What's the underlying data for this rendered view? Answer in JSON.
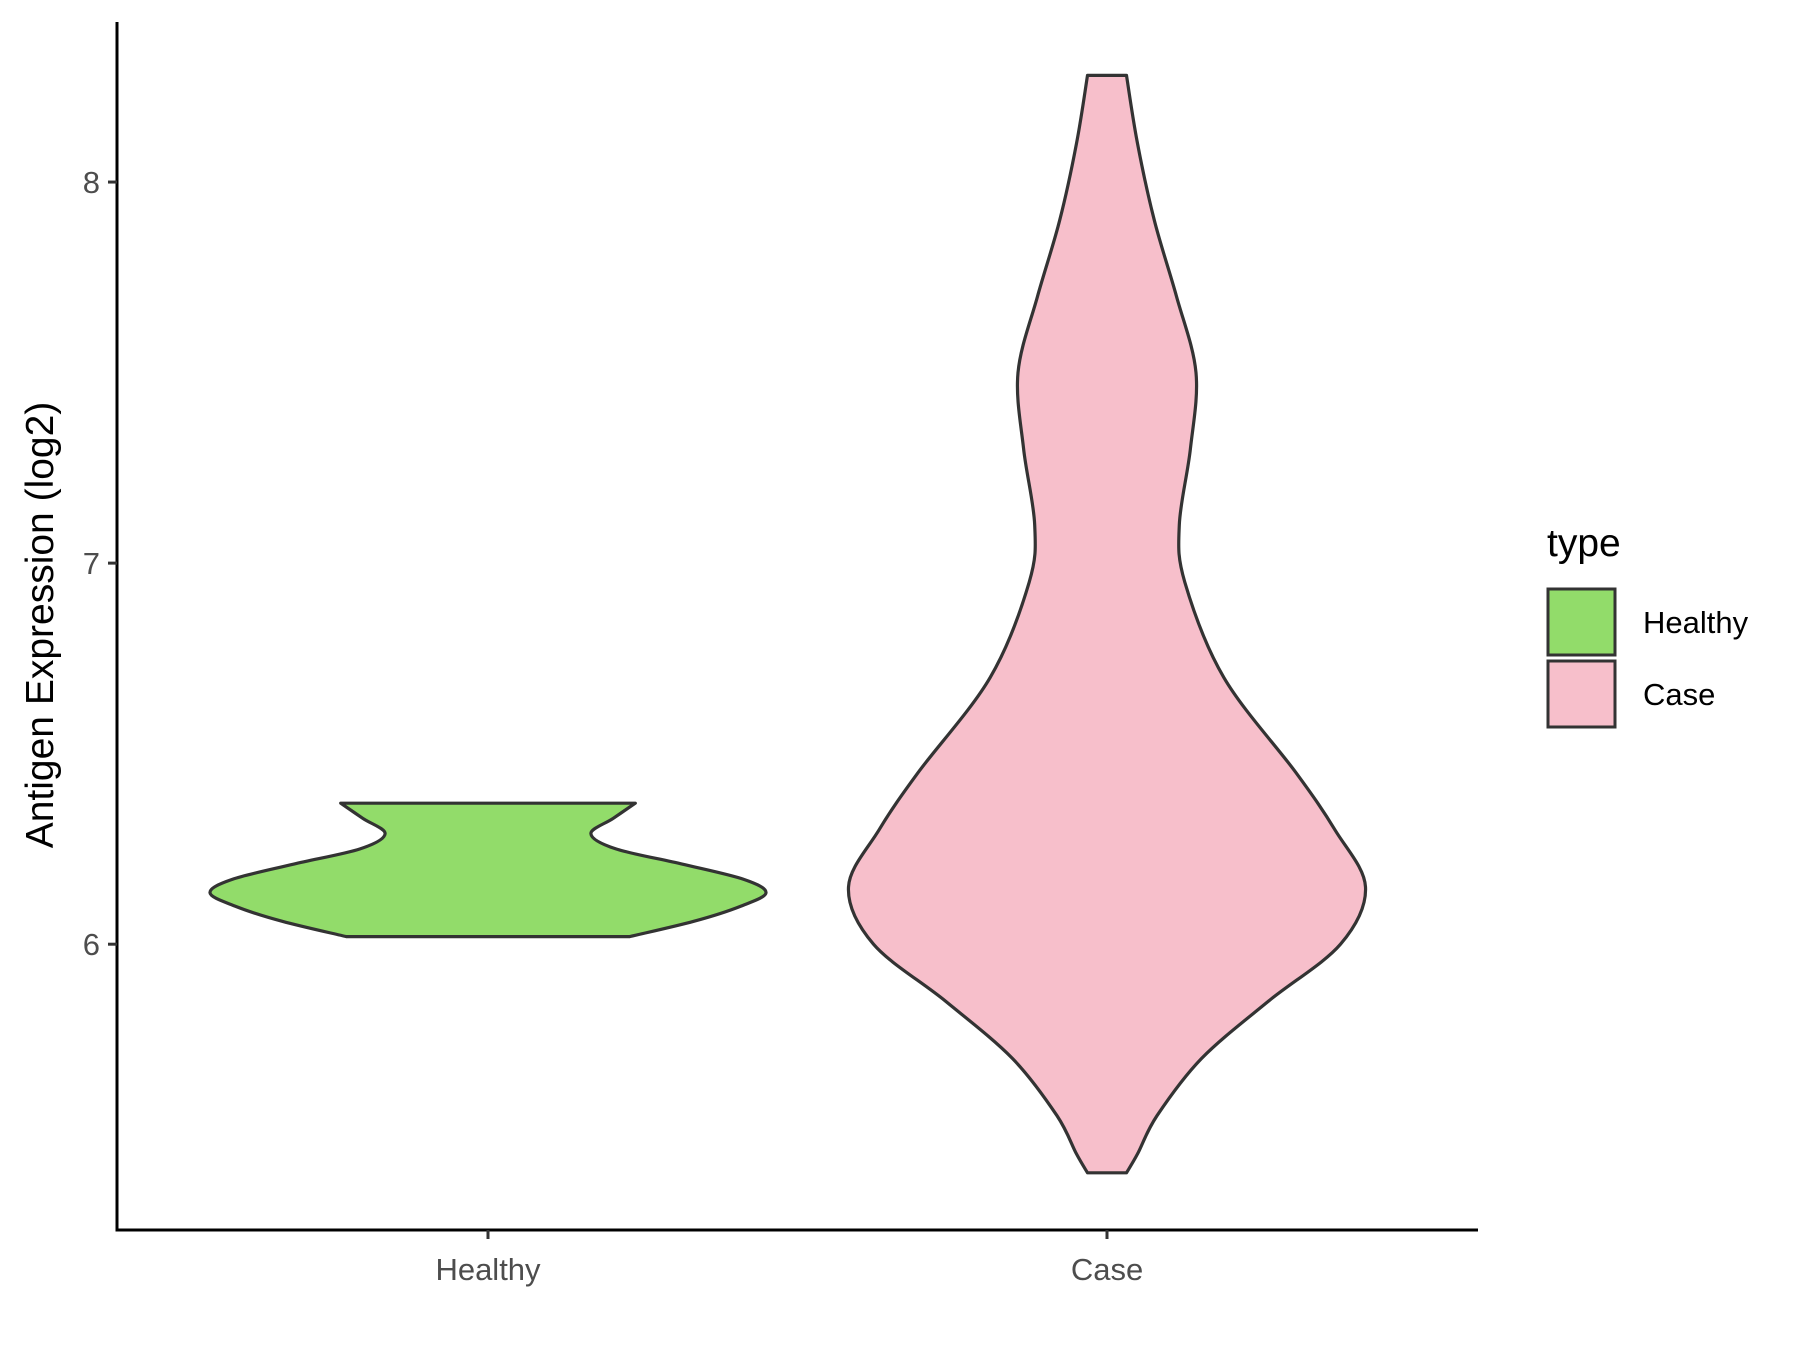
{
  "chart_data": {
    "type": "violin",
    "xlabel": "",
    "ylabel": "Antigen Expression (log2)",
    "ylim": [
      5.25,
      8.42
    ],
    "yticks": [
      6,
      7,
      8
    ],
    "categories": [
      "Healthy",
      "Case"
    ],
    "grid": false,
    "legend": {
      "title": "type",
      "placement": "right",
      "entries": [
        {
          "label": "Healthy",
          "color": "#92dc6a"
        },
        {
          "label": "Case",
          "color": "#f7bfcb"
        }
      ]
    },
    "series": [
      {
        "category": "Healthy",
        "color": "#92dc6a",
        "min": 6.02,
        "max": 6.37,
        "density_profile": [
          [
            6.02,
            0.51
          ],
          [
            6.06,
            0.74
          ],
          [
            6.1,
            0.91
          ],
          [
            6.135,
            1.0
          ],
          [
            6.17,
            0.92
          ],
          [
            6.21,
            0.7
          ],
          [
            6.25,
            0.46
          ],
          [
            6.29,
            0.37
          ],
          [
            6.33,
            0.45
          ],
          [
            6.37,
            0.53
          ]
        ]
      },
      {
        "category": "Case",
        "color": "#f7bfcb",
        "min": 5.4,
        "max": 8.28,
        "density_profile": [
          [
            5.4,
            0.07
          ],
          [
            5.45,
            0.11
          ],
          [
            5.55,
            0.18
          ],
          [
            5.7,
            0.34
          ],
          [
            5.85,
            0.58
          ],
          [
            6.0,
            0.84
          ],
          [
            6.15,
            0.93
          ],
          [
            6.3,
            0.82
          ],
          [
            6.45,
            0.68
          ],
          [
            6.7,
            0.42
          ],
          [
            6.95,
            0.28
          ],
          [
            7.1,
            0.26
          ],
          [
            7.3,
            0.3
          ],
          [
            7.5,
            0.32
          ],
          [
            7.7,
            0.25
          ],
          [
            7.9,
            0.17
          ],
          [
            8.1,
            0.11
          ],
          [
            8.28,
            0.07
          ]
        ]
      }
    ]
  }
}
